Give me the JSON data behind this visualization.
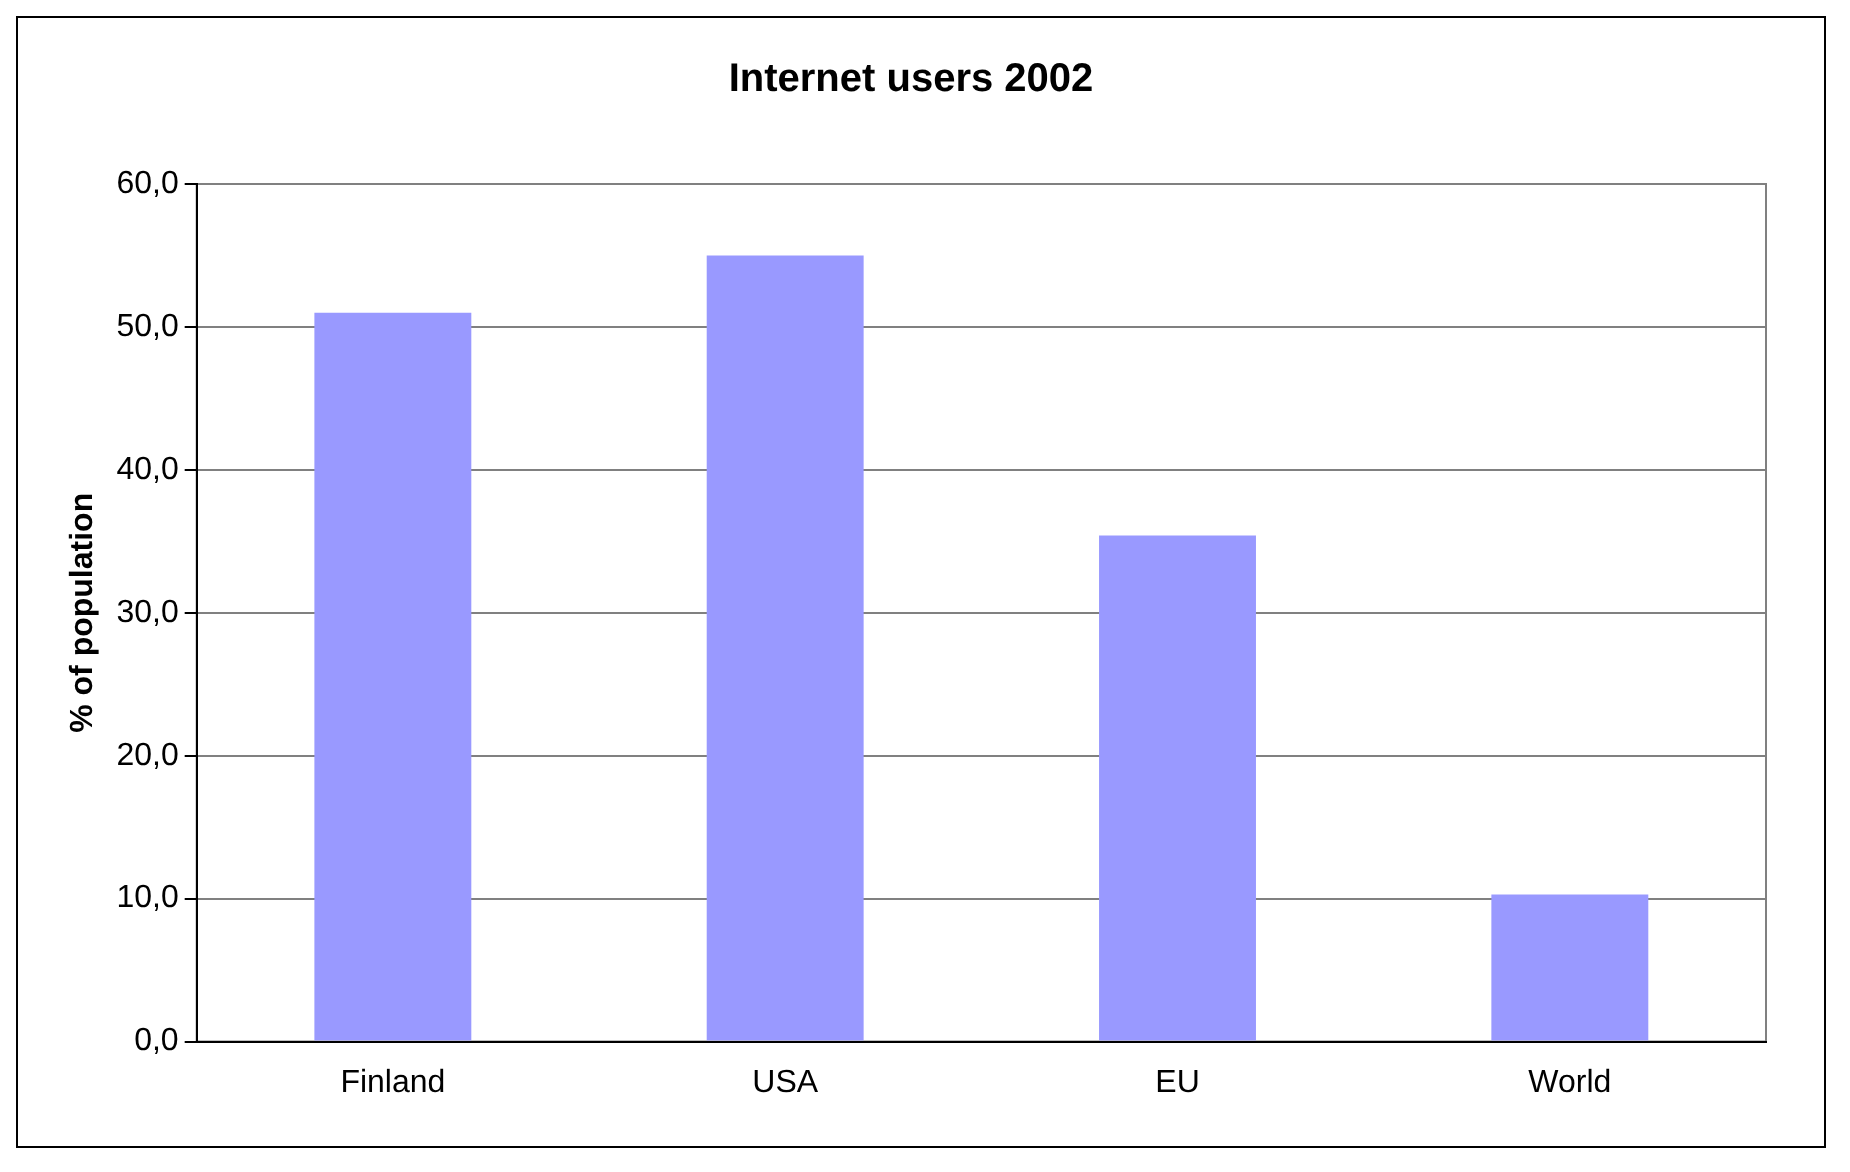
{
  "chart_data": {
    "type": "bar",
    "title": "Internet users 2002",
    "ylabel": "% of population",
    "categories": [
      "Finland",
      "USA",
      "EU",
      "World"
    ],
    "series": [
      {
        "color": "#9999ff",
        "values": [
          51.0,
          55.0,
          35.4,
          10.3
        ]
      }
    ],
    "ylim": [
      0,
      60
    ],
    "yticks": [
      {
        "value": 0,
        "label": "0,0"
      },
      {
        "value": 10,
        "label": "10,0"
      },
      {
        "value": 20,
        "label": "20,0"
      },
      {
        "value": 30,
        "label": "30,0"
      },
      {
        "value": 40,
        "label": "40,0"
      },
      {
        "value": 50,
        "label": "50,0"
      },
      {
        "value": 60,
        "label": "60,0"
      }
    ],
    "grid": "y",
    "legend": false
  }
}
